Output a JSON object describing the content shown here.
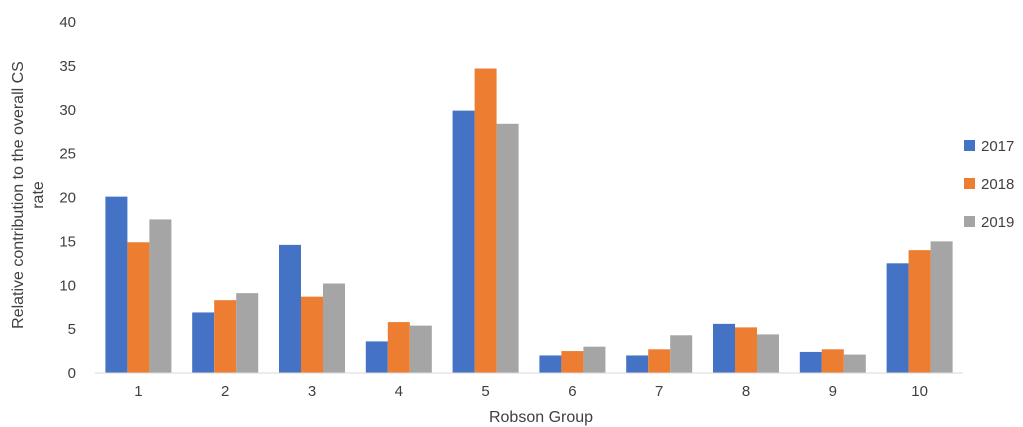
{
  "chart_data": {
    "type": "bar",
    "title": "",
    "xlabel": "Robson Group",
    "ylabel_lines": [
      "Relative contribution to the overall CS",
      "rate"
    ],
    "categories": [
      "1",
      "2",
      "3",
      "4",
      "5",
      "6",
      "7",
      "8",
      "9",
      "10"
    ],
    "ylim": [
      0,
      40
    ],
    "yticks": [
      0,
      5,
      10,
      15,
      20,
      25,
      30,
      35,
      40
    ],
    "grid": false,
    "legend_position": "right",
    "series": [
      {
        "name": "2017",
        "color": "#4472C4",
        "values": [
          20.1,
          6.9,
          14.6,
          3.6,
          29.9,
          2.0,
          2.0,
          5.6,
          2.4,
          12.5
        ]
      },
      {
        "name": "2018",
        "color": "#ED7D31",
        "values": [
          14.9,
          8.3,
          8.7,
          5.8,
          34.7,
          2.5,
          2.7,
          5.2,
          2.7,
          14.0
        ]
      },
      {
        "name": "2019",
        "color": "#A5A5A5",
        "values": [
          17.5,
          9.1,
          10.2,
          5.4,
          28.4,
          3.0,
          4.3,
          4.4,
          2.1,
          15.0
        ]
      }
    ]
  }
}
